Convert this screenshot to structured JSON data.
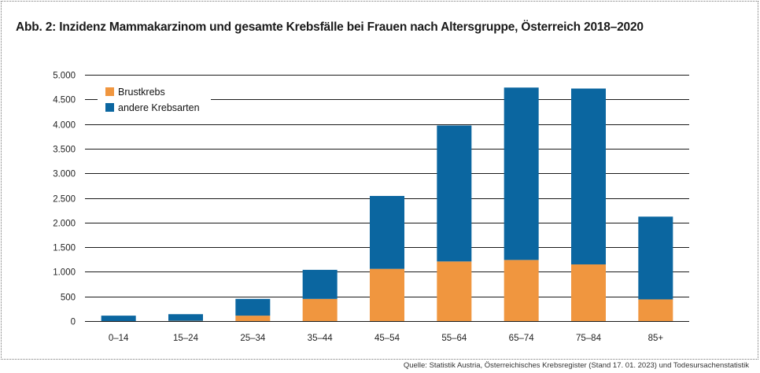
{
  "title": "Abb. 2: Inzidenz Mammakarzinom und gesamte Krebsfälle bei Frauen nach Altersgruppe, Österreich 2018–2020",
  "source": "Quelle: Statistik Austria, Österreichisches Krebsregister (Stand 17. 01. 2023) und Todesursachenstatistik",
  "colors": {
    "brustkrebs": "#F0963F",
    "andere": "#0B66A0",
    "grid": "#1a1a1a"
  },
  "chart_data": {
    "type": "bar",
    "stacked": true,
    "categories": [
      "0–14",
      "15–24",
      "25–34",
      "35–44",
      "45–54",
      "55–64",
      "65–74",
      "75–84",
      "85+"
    ],
    "series": [
      {
        "name": "Brustkrebs",
        "values": [
          0,
          5,
          110,
          450,
          1060,
          1210,
          1240,
          1150,
          440
        ]
      },
      {
        "name": "andere Krebsarten",
        "values": [
          110,
          135,
          340,
          590,
          1480,
          2760,
          3500,
          3570,
          1680
        ]
      }
    ],
    "totals": [
      110,
      140,
      450,
      1040,
      2540,
      3970,
      4740,
      4720,
      2120
    ],
    "ylim": [
      0,
      5000
    ],
    "yticks": [
      0,
      500,
      1000,
      1500,
      2000,
      2500,
      3000,
      3500,
      4000,
      4500,
      5000
    ],
    "ytick_labels": [
      "0",
      "500",
      "1.000",
      "1.500",
      "2.000",
      "2.500",
      "3.000",
      "3.500",
      "4.000",
      "4.500",
      "5.000"
    ],
    "grid": "horizontal",
    "legend": "top-left",
    "xlabel": "",
    "ylabel": ""
  }
}
